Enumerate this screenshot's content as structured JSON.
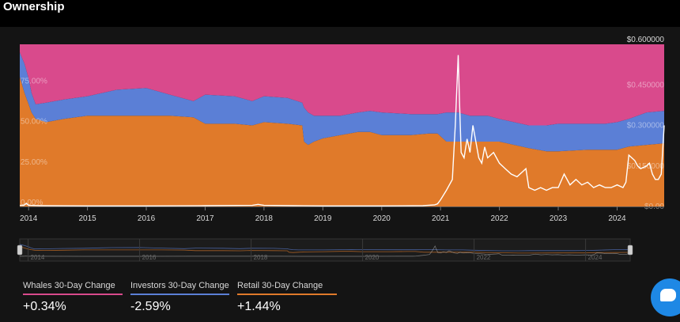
{
  "header": {
    "title": "Ownership"
  },
  "chart_data": {
    "type": "area",
    "stacked": true,
    "x_ticks": [
      "2014",
      "2015",
      "2016",
      "2017",
      "2018",
      "2019",
      "2020",
      "2021",
      "2022",
      "2023",
      "2024"
    ],
    "y_left_ticks": [
      "0.00%",
      "25.00%",
      "50.00%",
      "75.00%"
    ],
    "y_right_ticks": [
      "$0.00",
      "$0.150000",
      "$0.300000",
      "$0.450000",
      "$0.600000"
    ],
    "y_left_range": [
      0,
      100
    ],
    "y_right_range": [
      0,
      0.6
    ],
    "x_range": [
      2013.85,
      2024.8
    ],
    "series": [
      {
        "name": "Retail",
        "color": "#e07a2a",
        "x": [
          2013.85,
          2013.93,
          2014.0,
          2014.05,
          2014.12,
          2014.3,
          2014.6,
          2015.0,
          2015.5,
          2016.0,
          2016.4,
          2016.8,
          2017.0,
          2017.5,
          2017.8,
          2018.0,
          2018.4,
          2018.65,
          2018.68,
          2018.75,
          2018.85,
          2019.0,
          2019.3,
          2019.6,
          2019.8,
          2020.0,
          2020.5,
          2020.8,
          2020.95,
          2021.1,
          2021.3,
          2021.5,
          2021.8,
          2022.0,
          2022.5,
          2022.8,
          2023.0,
          2023.5,
          2023.8,
          2024.0,
          2024.2,
          2024.5,
          2024.8
        ],
        "values": [
          80,
          70,
          63,
          58,
          54,
          52,
          54,
          56,
          56,
          56,
          56,
          55,
          51,
          51,
          50,
          52,
          51,
          50,
          40,
          38,
          40,
          42,
          44,
          46,
          46,
          44,
          44,
          45,
          45,
          40,
          40,
          40,
          40,
          40,
          36,
          34,
          34,
          35,
          35,
          35,
          37,
          38,
          39
        ]
      },
      {
        "name": "Investors",
        "color": "#5b7fd6",
        "x": [
          2013.85,
          2013.93,
          2014.0,
          2014.05,
          2014.12,
          2014.3,
          2014.6,
          2015.0,
          2015.5,
          2016.0,
          2016.4,
          2016.8,
          2017.0,
          2017.5,
          2017.8,
          2018.0,
          2018.4,
          2018.65,
          2018.68,
          2018.75,
          2018.85,
          2019.0,
          2019.3,
          2019.6,
          2019.8,
          2020.0,
          2020.5,
          2020.8,
          2020.95,
          2021.1,
          2021.3,
          2021.5,
          2021.8,
          2022.0,
          2022.5,
          2022.8,
          2023.0,
          2023.5,
          2023.8,
          2024.0,
          2024.2,
          2024.5,
          2024.8
        ],
        "values": [
          15,
          18,
          16,
          12,
          9,
          12,
          12,
          12,
          16,
          17,
          13,
          10,
          18,
          17,
          15,
          16,
          16,
          14,
          21,
          20,
          16,
          14,
          12,
          12,
          13,
          14,
          13,
          12,
          12,
          18,
          18,
          16,
          16,
          14,
          14,
          16,
          17,
          16,
          16,
          17,
          17,
          20,
          20
        ]
      },
      {
        "name": "Whales",
        "color": "#d94a8c",
        "x": [
          2013.85,
          2013.93,
          2014.0,
          2014.05,
          2014.12,
          2014.3,
          2014.6,
          2015.0,
          2015.5,
          2016.0,
          2016.4,
          2016.8,
          2017.0,
          2017.5,
          2017.8,
          2018.0,
          2018.4,
          2018.65,
          2018.68,
          2018.75,
          2018.85,
          2019.0,
          2019.3,
          2019.6,
          2019.8,
          2020.0,
          2020.5,
          2020.8,
          2020.95,
          2021.1,
          2021.3,
          2021.5,
          2021.8,
          2022.0,
          2022.5,
          2022.8,
          2023.0,
          2023.5,
          2023.8,
          2024.0,
          2024.2,
          2024.5,
          2024.8
        ],
        "values": [
          5,
          12,
          21,
          30,
          37,
          36,
          34,
          32,
          28,
          27,
          31,
          35,
          31,
          32,
          35,
          32,
          33,
          36,
          39,
          42,
          44,
          44,
          44,
          42,
          41,
          42,
          43,
          43,
          43,
          42,
          42,
          44,
          44,
          46,
          50,
          50,
          49,
          49,
          49,
          48,
          46,
          42,
          41
        ]
      }
    ],
    "price": {
      "color": "#ffffff",
      "x": [
        2013.85,
        2013.92,
        2013.96,
        2014.0,
        2014.2,
        2015.0,
        2016.0,
        2017.0,
        2017.8,
        2017.9,
        2018.0,
        2018.5,
        2019.0,
        2020.0,
        2020.7,
        2020.9,
        2020.95,
        2021.0,
        2021.1,
        2021.2,
        2021.25,
        2021.3,
        2021.32,
        2021.35,
        2021.4,
        2021.45,
        2021.5,
        2021.55,
        2021.6,
        2021.65,
        2021.7,
        2021.75,
        2021.8,
        2021.85,
        2021.9,
        2021.95,
        2022.0,
        2022.1,
        2022.2,
        2022.3,
        2022.4,
        2022.45,
        2022.5,
        2022.6,
        2022.7,
        2022.8,
        2022.9,
        2023.0,
        2023.1,
        2023.2,
        2023.3,
        2023.4,
        2023.5,
        2023.6,
        2023.7,
        2023.8,
        2023.9,
        2024.0,
        2024.1,
        2024.15,
        2024.2,
        2024.3,
        2024.35,
        2024.4,
        2024.5,
        2024.55,
        2024.6,
        2024.65,
        2024.7,
        2024.75,
        2024.8
      ],
      "values": [
        0.004,
        0.004,
        0.012,
        0.004,
        0.003,
        0.002,
        0.002,
        0.003,
        0.004,
        0.008,
        0.004,
        0.003,
        0.002,
        0.002,
        0.003,
        0.006,
        0.01,
        0.025,
        0.06,
        0.1,
        0.3,
        0.56,
        0.4,
        0.2,
        0.18,
        0.25,
        0.2,
        0.3,
        0.24,
        0.18,
        0.16,
        0.22,
        0.18,
        0.19,
        0.2,
        0.18,
        0.16,
        0.14,
        0.12,
        0.11,
        0.13,
        0.14,
        0.07,
        0.06,
        0.07,
        0.06,
        0.07,
        0.07,
        0.12,
        0.08,
        0.1,
        0.08,
        0.09,
        0.07,
        0.08,
        0.07,
        0.07,
        0.08,
        0.07,
        0.09,
        0.19,
        0.17,
        0.15,
        0.14,
        0.15,
        0.16,
        0.12,
        0.1,
        0.1,
        0.12,
        0.3
      ]
    },
    "navigator_ticks": [
      "2014",
      "2016",
      "2018",
      "2020",
      "2022",
      "2024"
    ]
  },
  "stats": [
    {
      "label": "Whales 30-Day Change",
      "value": "+0.34%",
      "color": "#d94a8c"
    },
    {
      "label": "Investors 30-Day Change",
      "value": "-2.59%",
      "color": "#5b7fd6"
    },
    {
      "label": "Retail 30-Day Change",
      "value": "+1.44%",
      "color": "#e07a2a"
    }
  ],
  "chat": {
    "icon": "chat-bubble-icon"
  }
}
